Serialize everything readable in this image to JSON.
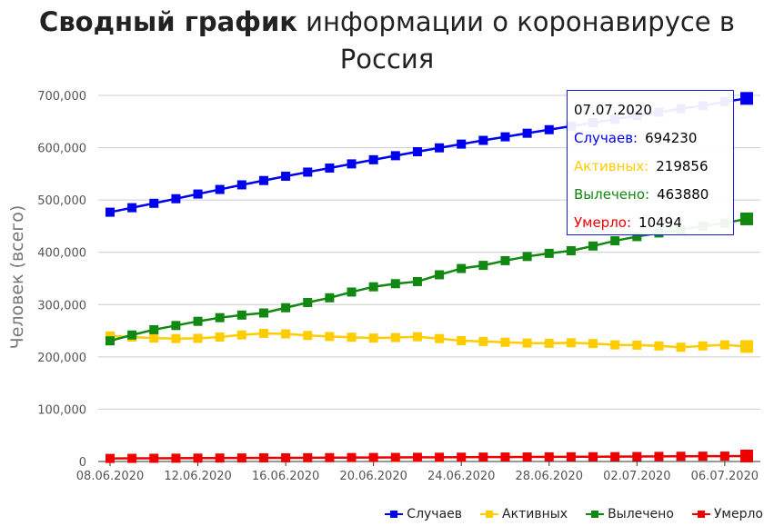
{
  "title": {
    "bold": "Сводный график",
    "rest": " информации о коронавирусе в Россия"
  },
  "colors": {
    "cases": "#0000ee",
    "active": "#ffcc00",
    "recovered": "#118811",
    "deaths": "#ee0000",
    "grid": "#cccccc",
    "axis_text": "#555555"
  },
  "chart_data": {
    "type": "line",
    "title": "Сводный график информации о коронавирусе в Россия",
    "xlabel": "",
    "ylabel": "Человек (всего)",
    "ylim": [
      0,
      700000
    ],
    "y_ticks": [
      0,
      100000,
      200000,
      300000,
      400000,
      500000,
      600000,
      700000
    ],
    "y_tick_labels": [
      "0",
      "100,000",
      "200,000",
      "300,000",
      "400,000",
      "500,000",
      "600,000",
      "700,000"
    ],
    "x": [
      "08.06.2020",
      "09.06.2020",
      "10.06.2020",
      "11.06.2020",
      "12.06.2020",
      "13.06.2020",
      "14.06.2020",
      "15.06.2020",
      "16.06.2020",
      "17.06.2020",
      "18.06.2020",
      "19.06.2020",
      "20.06.2020",
      "21.06.2020",
      "22.06.2020",
      "23.06.2020",
      "24.06.2020",
      "25.06.2020",
      "26.06.2020",
      "27.06.2020",
      "28.06.2020",
      "29.06.2020",
      "30.06.2020",
      "01.07.2020",
      "02.07.2020",
      "03.07.2020",
      "04.07.2020",
      "05.07.2020",
      "06.07.2020",
      "07.07.2020"
    ],
    "x_tick_labels": [
      "08.06.2020",
      "12.06.2020",
      "16.06.2020",
      "20.06.2020",
      "24.06.2020",
      "28.06.2020",
      "02.07.2020",
      "06.07.2020"
    ],
    "grid": true,
    "legend": "bottom-right",
    "series": [
      {
        "name": "Случаев",
        "color": "#0000ee",
        "values": [
          476658,
          485253,
          493657,
          502436,
          511423,
          520129,
          528964,
          537210,
          545458,
          553301,
          561091,
          569063,
          576952,
          584680,
          592280,
          599705,
          606881,
          613994,
          620794,
          627646,
          634437,
          641156,
          647849,
          654405,
          661165,
          667883,
          674515,
          680283,
          687862,
          694230
        ]
      },
      {
        "name": "Активных",
        "color": "#ffcc00",
        "values": [
          240000,
          238000,
          236000,
          235000,
          235500,
          238000,
          242000,
          245000,
          244000,
          241000,
          239000,
          237500,
          236000,
          237000,
          238500,
          235000,
          231000,
          229500,
          228000,
          226500,
          226000,
          227000,
          225500,
          223000,
          222500,
          221000,
          218500,
          221000,
          223000,
          219856
        ]
      },
      {
        "name": "Вылечено",
        "color": "#118811",
        "values": [
          230688,
          241917,
          252000,
          260000,
          268000,
          275000,
          280000,
          284000,
          294000,
          304000,
          313000,
          324000,
          334000,
          340000,
          344000,
          357000,
          369000,
          375000,
          384000,
          392000,
          398000,
          403000,
          412000,
          422000,
          430000,
          437000,
          443000,
          450000,
          456000,
          463880
        ]
      },
      {
        "name": "Умерло",
        "color": "#ee0000",
        "values": [
          5859,
          6000,
          6150,
          6300,
          6450,
          6600,
          6750,
          6900,
          7050,
          7200,
          7350,
          7500,
          7650,
          7800,
          7950,
          8100,
          8250,
          8400,
          8550,
          8700,
          8850,
          9000,
          9150,
          9300,
          9500,
          9750,
          10000,
          10150,
          10300,
          10494
        ]
      }
    ],
    "tooltip": {
      "date": "07.07.2020",
      "rows": [
        {
          "label": "Случаев:",
          "value": "694230"
        },
        {
          "label": "Активных:",
          "value": "219856"
        },
        {
          "label": "Вылечено:",
          "value": "463880"
        },
        {
          "label": "Умерло:",
          "value": "10494"
        }
      ]
    }
  }
}
